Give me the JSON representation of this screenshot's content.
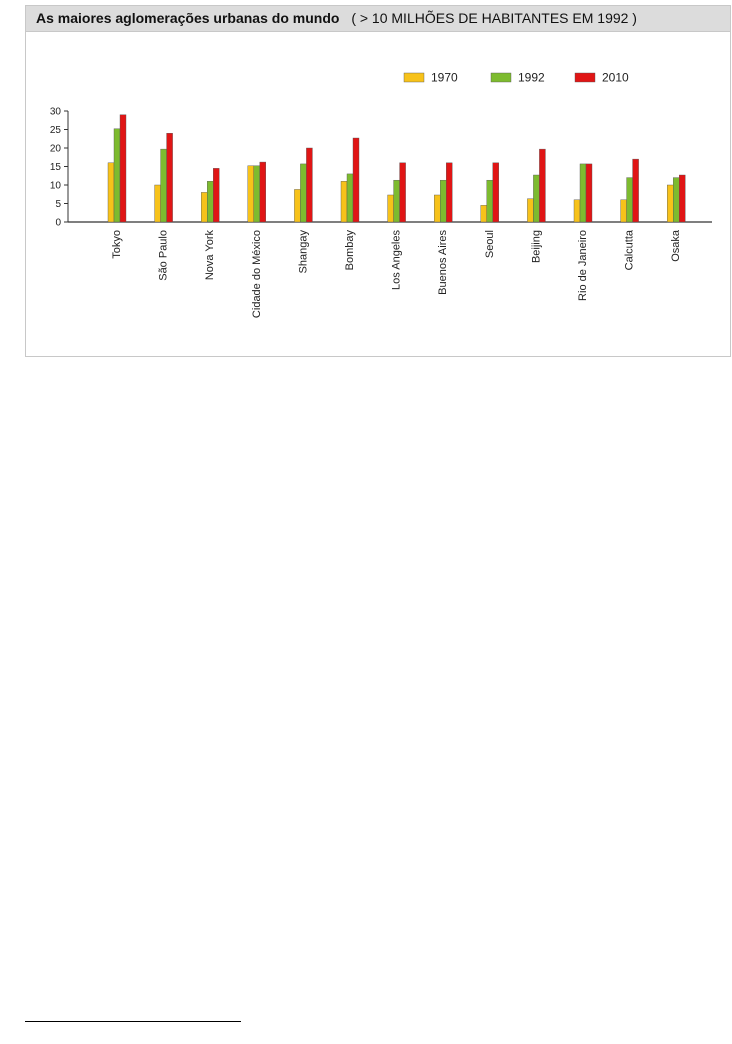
{
  "chart_data": {
    "type": "bar",
    "title": "As maiores aglomerações urbanas do mundo",
    "subtitle": "( > 10 MILHÕES DE HABITANTES EM 1992 )",
    "categories": [
      "Tokyo",
      "São Paulo",
      "Nova York",
      "Cidade do México",
      "Shangay",
      "Bombay",
      "Los Angeles",
      "Buenos Aires",
      "Seoul",
      "Beijing",
      "Rio de Janeiro",
      "Calcutta",
      "Osaka"
    ],
    "series": [
      {
        "name": "1970",
        "color": "#f7c21a",
        "values": [
          16,
          10,
          8,
          15.2,
          8.8,
          11,
          7.3,
          7.3,
          4.5,
          6.3,
          6,
          6,
          10
        ]
      },
      {
        "name": "1992",
        "color": "#7dbb2f",
        "values": [
          25.2,
          19.7,
          11,
          15.2,
          15.7,
          13,
          11.3,
          11.3,
          11.3,
          12.7,
          15.7,
          12,
          12
        ]
      },
      {
        "name": "2010",
        "color": "#e01515",
        "values": [
          29,
          24,
          14.5,
          16.2,
          20,
          22.7,
          16,
          16,
          16,
          19.7,
          15.7,
          17,
          12.7
        ]
      }
    ],
    "yticks": [
      0,
      5,
      10,
      15,
      20,
      25,
      30
    ],
    "ylim": [
      0,
      30
    ],
    "legend_position": "top-right",
    "grid": false
  }
}
